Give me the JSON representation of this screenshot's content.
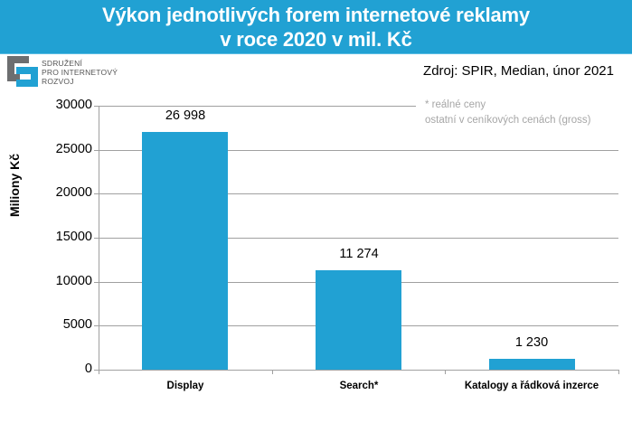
{
  "header": {
    "title_line1": "Výkon jednotlivých forem internetové reklamy",
    "title_line2": "v roce 2020 v mil. Kč"
  },
  "logo": {
    "line1": "SDRUŽENÍ",
    "line2": "PRO INTERNETOVÝ",
    "line3": "ROZVOJ",
    "icon": "spir-logo-icon"
  },
  "source": "Zdroj: SPIR, Median, únor 2021",
  "note": {
    "line1": "* reálné ceny",
    "line2": "ostatní v ceníkových cenách (gross)"
  },
  "colors": {
    "accent": "#21a1d3",
    "grid": "#a0a0a0",
    "note_text": "#a6a6a6"
  },
  "chart_data": {
    "type": "bar",
    "title": "Výkon jednotlivých forem internetové reklamy v roce 2020 v mil. Kč",
    "xlabel": "",
    "ylabel": "Miliony Kč",
    "categories": [
      "Display",
      "Search*",
      "Katalogy a řádková inzerce"
    ],
    "values": [
      26998,
      11274,
      1230
    ],
    "value_labels": [
      "26 998",
      "11 274",
      "1 230"
    ],
    "ylim": [
      0,
      30000
    ],
    "yticks": [
      0,
      5000,
      10000,
      15000,
      20000,
      25000,
      30000
    ],
    "ytick_labels": [
      "0",
      "5000",
      "10000",
      "15000",
      "20000",
      "25000",
      "30000"
    ],
    "grid": true,
    "legend": null,
    "annotations": [
      "* reálné ceny",
      "ostatní v ceníkových cenách (gross)",
      "Zdroj: SPIR, Median, únor 2021"
    ]
  }
}
